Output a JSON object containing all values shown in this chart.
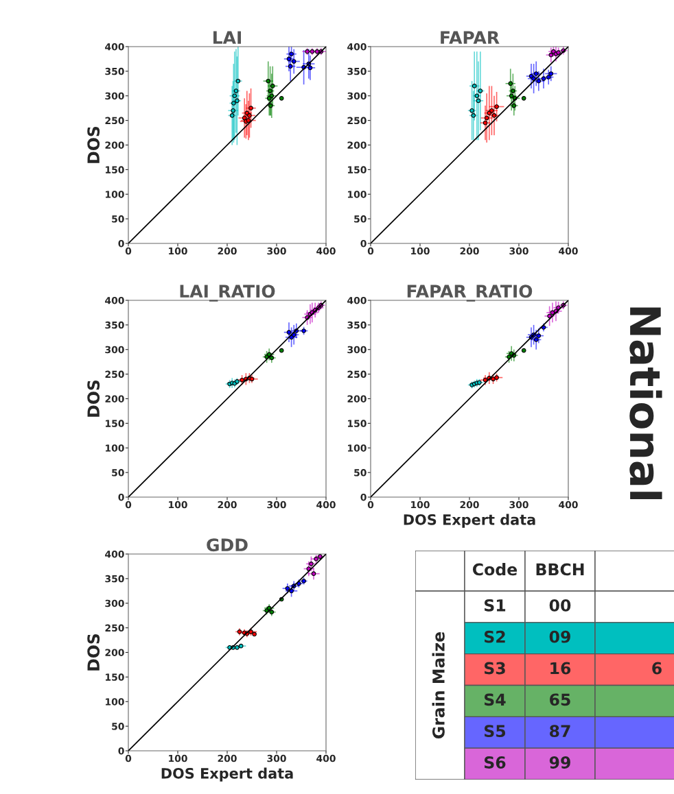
{
  "chart_data": [
    {
      "type": "scatter",
      "title": "LAI",
      "ylabel": "DOS",
      "xlim": [
        0,
        400
      ],
      "ylim": [
        0,
        400
      ],
      "xticks": [
        0,
        100,
        200,
        300,
        400
      ],
      "yticks": [
        0,
        50,
        100,
        150,
        200,
        250,
        300,
        350,
        400
      ],
      "marker": "circle",
      "grid": false,
      "series": [
        {
          "type": "scatter",
          "color": "#00bfbf",
          "x": [
            210,
            213,
            215,
            218,
            222,
            212,
            220
          ],
          "values": [
            260,
            285,
            300,
            310,
            330,
            270,
            290
          ],
          "errors": [
            60,
            80,
            90,
            85,
            70,
            60,
            90
          ],
          "xerrors": [
            8,
            8,
            10,
            8,
            8,
            10,
            8
          ]
        },
        {
          "type": "scatter",
          "color": "#ff0000",
          "x": [
            235,
            240,
            245,
            248,
            238,
            243
          ],
          "values": [
            255,
            265,
            260,
            275,
            248,
            250
          ],
          "errors": [
            40,
            45,
            45,
            40,
            35,
            40
          ],
          "xerrors": [
            12,
            10,
            12,
            10,
            12,
            15
          ]
        },
        {
          "type": "scatter",
          "color": "#008000",
          "x": [
            283,
            287,
            290,
            285,
            292,
            288,
            310
          ],
          "values": [
            330,
            310,
            300,
            295,
            320,
            280,
            295
          ],
          "errors": [
            40,
            50,
            45,
            35,
            40,
            20,
            null
          ],
          "xerrors": [
            10,
            8,
            10,
            8,
            10,
            8,
            null
          ]
        },
        {
          "type": "scatter",
          "color": "#0000ff",
          "x": [
            325,
            330,
            335,
            328,
            355,
            365,
            368
          ],
          "values": [
            375,
            385,
            370,
            360,
            358,
            365,
            357
          ],
          "errors": [
            25,
            15,
            25,
            30,
            35,
            30,
            25
          ],
          "xerrors": [
            10,
            10,
            12,
            10,
            15,
            12,
            10
          ]
        },
        {
          "type": "scatter",
          "color": "#bf00bf",
          "x": [
            362,
            372,
            382,
            390
          ],
          "values": [
            390,
            390,
            390,
            390
          ],
          "errors": [
            7,
            7,
            7,
            7
          ],
          "xerrors": [
            10,
            10,
            10,
            10
          ]
        },
        {
          "type": "line",
          "color": "#000000",
          "marker": "none",
          "x": [
            0,
            400
          ],
          "values": [
            0,
            400
          ]
        }
      ]
    },
    {
      "type": "scatter",
      "title": "FAPAR",
      "xlim": [
        0,
        400
      ],
      "ylim": [
        0,
        400
      ],
      "xticks": [
        0,
        100,
        200,
        300,
        400
      ],
      "yticks": [
        0,
        50,
        100,
        150,
        200,
        250,
        300,
        350,
        400
      ],
      "marker": "circle",
      "grid": false,
      "series": [
        {
          "type": "scatter",
          "color": "#00bfbf",
          "x": [
            205,
            210,
            215,
            218,
            222,
            208
          ],
          "values": [
            270,
            320,
            300,
            290,
            310,
            260
          ],
          "errors": [
            60,
            70,
            90,
            80,
            80,
            50
          ],
          "xerrors": [
            8,
            10,
            8,
            10,
            8,
            8
          ]
        },
        {
          "type": "scatter",
          "color": "#ff0000",
          "x": [
            235,
            240,
            245,
            250,
            232,
            255
          ],
          "values": [
            255,
            265,
            270,
            260,
            245,
            278
          ],
          "errors": [
            50,
            55,
            50,
            40,
            35,
            30
          ],
          "xerrors": [
            12,
            10,
            12,
            10,
            10,
            15
          ]
        },
        {
          "type": "scatter",
          "color": "#008000",
          "x": [
            285,
            288,
            292,
            283,
            290,
            310
          ],
          "values": [
            300,
            310,
            295,
            325,
            280,
            295
          ],
          "errors": [
            30,
            35,
            25,
            30,
            20,
            null
          ],
          "xerrors": [
            10,
            8,
            10,
            10,
            8,
            null
          ]
        },
        {
          "type": "scatter",
          "color": "#0000ff",
          "x": [
            325,
            330,
            335,
            340,
            350,
            365,
            360
          ],
          "values": [
            340,
            335,
            345,
            330,
            335,
            345,
            338
          ],
          "errors": [
            25,
            30,
            25,
            20,
            20,
            15,
            15
          ],
          "xerrors": [
            10,
            12,
            10,
            12,
            10,
            12,
            10
          ]
        },
        {
          "type": "scatter",
          "color": "#bf00bf",
          "x": [
            365,
            370,
            375,
            380,
            390
          ],
          "values": [
            383,
            390,
            385,
            388,
            392
          ],
          "errors": [
            15,
            10,
            15,
            10,
            8
          ],
          "xerrors": [
            10,
            10,
            12,
            10,
            8
          ]
        },
        {
          "type": "line",
          "color": "#000000",
          "marker": "none",
          "x": [
            0,
            400
          ],
          "values": [
            0,
            400
          ]
        }
      ]
    },
    {
      "type": "scatter",
      "title": "LAI_RATIO",
      "ylabel": "DOS",
      "xlim": [
        0,
        400
      ],
      "ylim": [
        0,
        400
      ],
      "xticks": [
        0,
        100,
        200,
        300,
        400
      ],
      "yticks": [
        0,
        50,
        100,
        150,
        200,
        250,
        300,
        350,
        400
      ],
      "marker": "circle",
      "grid": false,
      "series": [
        {
          "type": "scatter",
          "color": "#00bfbf",
          "x": [
            205,
            210,
            215,
            220
          ],
          "values": [
            230,
            232,
            231,
            235
          ],
          "errors": [
            8,
            10,
            8,
            7
          ],
          "xerrors": [
            8,
            10,
            8,
            8
          ]
        },
        {
          "type": "scatter",
          "color": "#ff0000",
          "x": [
            230,
            238,
            245,
            250
          ],
          "values": [
            238,
            240,
            242,
            240
          ],
          "errors": [
            10,
            12,
            10,
            8
          ],
          "xerrors": [
            10,
            12,
            10,
            12
          ]
        },
        {
          "type": "scatter",
          "color": "#008000",
          "x": [
            280,
            285,
            290,
            310
          ],
          "values": [
            285,
            290,
            283,
            298
          ],
          "errors": [
            12,
            12,
            10,
            null
          ],
          "xerrors": [
            8,
            10,
            8,
            null
          ]
        },
        {
          "type": "scatter",
          "color": "#0000ff",
          "x": [
            325,
            330,
            335,
            340,
            355
          ],
          "values": [
            335,
            325,
            330,
            338,
            338
          ],
          "errors": [
            20,
            20,
            20,
            15,
            8
          ],
          "xerrors": [
            10,
            12,
            10,
            10,
            8
          ]
        },
        {
          "type": "scatter",
          "color": "#bf00bf",
          "x": [
            362,
            368,
            372,
            378,
            385,
            390
          ],
          "values": [
            365,
            372,
            375,
            380,
            385,
            390
          ],
          "errors": [
            15,
            20,
            20,
            15,
            10,
            8
          ],
          "xerrors": [
            10,
            12,
            12,
            10,
            10,
            8
          ]
        },
        {
          "type": "line",
          "color": "#000000",
          "marker": "none",
          "x": [
            0,
            400
          ],
          "values": [
            0,
            400
          ]
        }
      ]
    },
    {
      "type": "scatter",
      "title": "FAPAR_RATIO",
      "xlabel": "DOS Expert data",
      "xlim": [
        0,
        400
      ],
      "ylim": [
        0,
        400
      ],
      "xticks": [
        0,
        100,
        200,
        300,
        400
      ],
      "yticks": [
        0,
        50,
        100,
        150,
        200,
        250,
        300,
        350,
        400
      ],
      "marker": "circle",
      "grid": false,
      "series": [
        {
          "type": "scatter",
          "color": "#00bfbf",
          "x": [
            205,
            210,
            215,
            220
          ],
          "values": [
            228,
            230,
            232,
            233
          ],
          "errors": [
            7,
            7,
            8,
            7
          ],
          "xerrors": [
            8,
            10,
            8,
            8
          ]
        },
        {
          "type": "scatter",
          "color": "#ff0000",
          "x": [
            232,
            240,
            248,
            255
          ],
          "values": [
            238,
            242,
            240,
            243
          ],
          "errors": [
            10,
            12,
            10,
            8
          ],
          "xerrors": [
            10,
            12,
            10,
            12
          ]
        },
        {
          "type": "scatter",
          "color": "#008000",
          "x": [
            280,
            285,
            290,
            310
          ],
          "values": [
            285,
            292,
            288,
            298
          ],
          "errors": [
            12,
            15,
            12,
            null
          ],
          "xerrors": [
            8,
            10,
            8,
            null
          ]
        },
        {
          "type": "scatter",
          "color": "#0000ff",
          "x": [
            325,
            330,
            335,
            340,
            350
          ],
          "values": [
            325,
            330,
            320,
            328,
            345
          ],
          "errors": [
            20,
            20,
            20,
            15,
            8
          ],
          "xerrors": [
            10,
            12,
            10,
            10,
            8
          ]
        },
        {
          "type": "scatter",
          "color": "#bf00bf",
          "x": [
            362,
            368,
            375,
            380,
            390
          ],
          "values": [
            368,
            375,
            378,
            385,
            390
          ],
          "errors": [
            20,
            20,
            20,
            12,
            8
          ],
          "xerrors": [
            10,
            12,
            12,
            10,
            8
          ]
        },
        {
          "type": "line",
          "color": "#000000",
          "marker": "none",
          "x": [
            0,
            400
          ],
          "values": [
            0,
            400
          ]
        }
      ]
    },
    {
      "type": "scatter",
      "title": "GDD",
      "xlabel": "DOS Expert data",
      "ylabel": "DOS",
      "xlim": [
        0,
        400
      ],
      "ylim": [
        0,
        400
      ],
      "xticks": [
        0,
        100,
        200,
        300,
        400
      ],
      "yticks": [
        0,
        50,
        100,
        150,
        200,
        250,
        300,
        350,
        400
      ],
      "marker": "circle",
      "grid": false,
      "series": [
        {
          "type": "scatter",
          "color": "#00bfbf",
          "x": [
            205,
            212,
            220,
            228
          ],
          "values": [
            210,
            210,
            210,
            213
          ],
          "errors": [
            null,
            null,
            null,
            null
          ],
          "xerrors": [
            8,
            8,
            8,
            10
          ]
        },
        {
          "type": "scatter",
          "color": "#ff0000",
          "x": [
            225,
            235,
            240,
            248,
            255
          ],
          "values": [
            242,
            240,
            238,
            242,
            237
          ],
          "errors": [
            7,
            7,
            7,
            8,
            null
          ],
          "xerrors": [
            8,
            10,
            10,
            12,
            null
          ]
        },
        {
          "type": "scatter",
          "color": "#008000",
          "x": [
            280,
            285,
            290,
            310
          ],
          "values": [
            285,
            290,
            282,
            308
          ],
          "errors": [
            8,
            8,
            8,
            null
          ],
          "xerrors": [
            8,
            10,
            8,
            null
          ]
        },
        {
          "type": "scatter",
          "color": "#0000ff",
          "x": [
            322,
            330,
            335,
            345,
            355
          ],
          "values": [
            330,
            325,
            335,
            340,
            345
          ],
          "errors": [
            10,
            12,
            10,
            8,
            7
          ],
          "xerrors": [
            10,
            12,
            10,
            8,
            7
          ]
        },
        {
          "type": "scatter",
          "color": "#bf00bf",
          "x": [
            365,
            370,
            375,
            380,
            388
          ],
          "values": [
            370,
            380,
            360,
            390,
            395
          ],
          "errors": [
            15,
            15,
            12,
            8,
            null
          ],
          "xerrors": [
            10,
            10,
            12,
            10,
            8
          ]
        },
        {
          "type": "line",
          "color": "#000000",
          "marker": "none",
          "x": [
            0,
            400
          ],
          "values": [
            0,
            400
          ]
        }
      ]
    },
    {
      "type": "other",
      "categories": [
        "Code",
        "BBCH",
        null
      ],
      "ylabel": "Grain Maize",
      "cell_labels": [
        [
          "S1",
          "00",
          null
        ],
        [
          "S2",
          "09",
          null
        ],
        [
          "S3",
          "16",
          "6"
        ],
        [
          "S4",
          "65",
          null
        ],
        [
          "S5",
          "87",
          null
        ],
        [
          "S6",
          "99",
          null
        ]
      ],
      "colors": [
        "#ffffff",
        "#00bfbf",
        "#ff6666",
        "#66b266",
        "#6666ff",
        "#d966d9"
      ],
      "annotations": [
        "National"
      ]
    }
  ]
}
